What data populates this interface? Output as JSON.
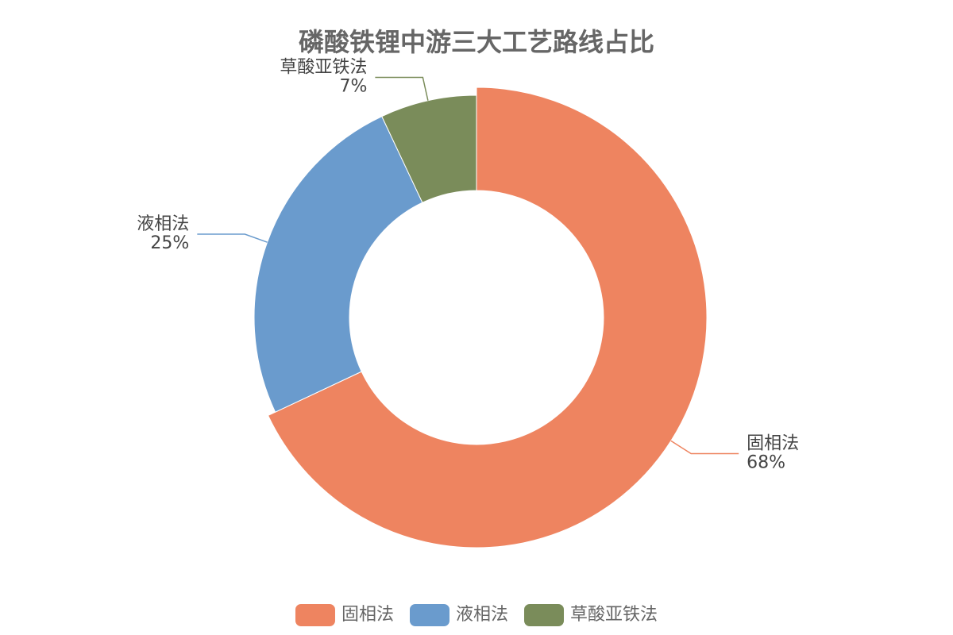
{
  "chart_data": {
    "type": "donut",
    "title": "磷酸铁锂中游三大工艺路线占比",
    "categories": [
      "固相法",
      "液相法",
      "草酸亚铁法"
    ],
    "values": [
      68,
      25,
      7
    ],
    "value_labels": [
      "68%",
      "25%",
      "7%"
    ],
    "colors": [
      "#ee8460",
      "#6a9bcd",
      "#7a8c5a"
    ]
  }
}
